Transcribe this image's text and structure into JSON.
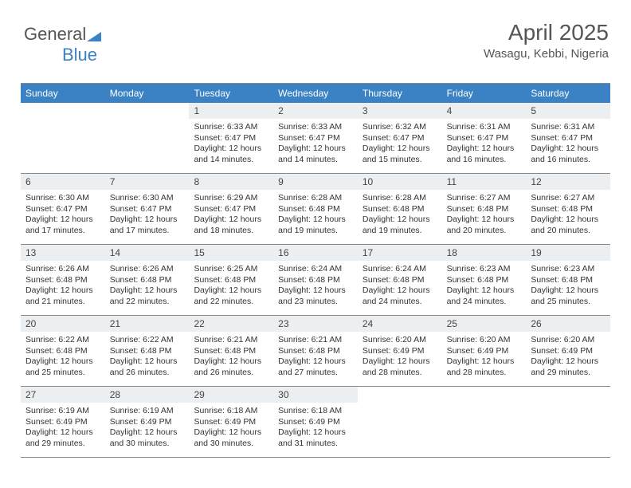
{
  "logo": {
    "text_gray": "General",
    "text_blue": "Blue"
  },
  "header": {
    "month": "April 2025",
    "location": "Wasagu, Kebbi, Nigeria"
  },
  "colors": {
    "header_bg": "#3b82c4",
    "daynum_bg": "#eceff1",
    "border": "#888888",
    "title_color": "#555555",
    "text_color": "#333333"
  },
  "day_names": [
    "Sunday",
    "Monday",
    "Tuesday",
    "Wednesday",
    "Thursday",
    "Friday",
    "Saturday"
  ],
  "weeks": [
    [
      {
        "n": "",
        "lines": []
      },
      {
        "n": "",
        "lines": []
      },
      {
        "n": "1",
        "lines": [
          "Sunrise: 6:33 AM",
          "Sunset: 6:47 PM",
          "Daylight: 12 hours",
          "and 14 minutes."
        ]
      },
      {
        "n": "2",
        "lines": [
          "Sunrise: 6:33 AM",
          "Sunset: 6:47 PM",
          "Daylight: 12 hours",
          "and 14 minutes."
        ]
      },
      {
        "n": "3",
        "lines": [
          "Sunrise: 6:32 AM",
          "Sunset: 6:47 PM",
          "Daylight: 12 hours",
          "and 15 minutes."
        ]
      },
      {
        "n": "4",
        "lines": [
          "Sunrise: 6:31 AM",
          "Sunset: 6:47 PM",
          "Daylight: 12 hours",
          "and 16 minutes."
        ]
      },
      {
        "n": "5",
        "lines": [
          "Sunrise: 6:31 AM",
          "Sunset: 6:47 PM",
          "Daylight: 12 hours",
          "and 16 minutes."
        ]
      }
    ],
    [
      {
        "n": "6",
        "lines": [
          "Sunrise: 6:30 AM",
          "Sunset: 6:47 PM",
          "Daylight: 12 hours",
          "and 17 minutes."
        ]
      },
      {
        "n": "7",
        "lines": [
          "Sunrise: 6:30 AM",
          "Sunset: 6:47 PM",
          "Daylight: 12 hours",
          "and 17 minutes."
        ]
      },
      {
        "n": "8",
        "lines": [
          "Sunrise: 6:29 AM",
          "Sunset: 6:47 PM",
          "Daylight: 12 hours",
          "and 18 minutes."
        ]
      },
      {
        "n": "9",
        "lines": [
          "Sunrise: 6:28 AM",
          "Sunset: 6:48 PM",
          "Daylight: 12 hours",
          "and 19 minutes."
        ]
      },
      {
        "n": "10",
        "lines": [
          "Sunrise: 6:28 AM",
          "Sunset: 6:48 PM",
          "Daylight: 12 hours",
          "and 19 minutes."
        ]
      },
      {
        "n": "11",
        "lines": [
          "Sunrise: 6:27 AM",
          "Sunset: 6:48 PM",
          "Daylight: 12 hours",
          "and 20 minutes."
        ]
      },
      {
        "n": "12",
        "lines": [
          "Sunrise: 6:27 AM",
          "Sunset: 6:48 PM",
          "Daylight: 12 hours",
          "and 20 minutes."
        ]
      }
    ],
    [
      {
        "n": "13",
        "lines": [
          "Sunrise: 6:26 AM",
          "Sunset: 6:48 PM",
          "Daylight: 12 hours",
          "and 21 minutes."
        ]
      },
      {
        "n": "14",
        "lines": [
          "Sunrise: 6:26 AM",
          "Sunset: 6:48 PM",
          "Daylight: 12 hours",
          "and 22 minutes."
        ]
      },
      {
        "n": "15",
        "lines": [
          "Sunrise: 6:25 AM",
          "Sunset: 6:48 PM",
          "Daylight: 12 hours",
          "and 22 minutes."
        ]
      },
      {
        "n": "16",
        "lines": [
          "Sunrise: 6:24 AM",
          "Sunset: 6:48 PM",
          "Daylight: 12 hours",
          "and 23 minutes."
        ]
      },
      {
        "n": "17",
        "lines": [
          "Sunrise: 6:24 AM",
          "Sunset: 6:48 PM",
          "Daylight: 12 hours",
          "and 24 minutes."
        ]
      },
      {
        "n": "18",
        "lines": [
          "Sunrise: 6:23 AM",
          "Sunset: 6:48 PM",
          "Daylight: 12 hours",
          "and 24 minutes."
        ]
      },
      {
        "n": "19",
        "lines": [
          "Sunrise: 6:23 AM",
          "Sunset: 6:48 PM",
          "Daylight: 12 hours",
          "and 25 minutes."
        ]
      }
    ],
    [
      {
        "n": "20",
        "lines": [
          "Sunrise: 6:22 AM",
          "Sunset: 6:48 PM",
          "Daylight: 12 hours",
          "and 25 minutes."
        ]
      },
      {
        "n": "21",
        "lines": [
          "Sunrise: 6:22 AM",
          "Sunset: 6:48 PM",
          "Daylight: 12 hours",
          "and 26 minutes."
        ]
      },
      {
        "n": "22",
        "lines": [
          "Sunrise: 6:21 AM",
          "Sunset: 6:48 PM",
          "Daylight: 12 hours",
          "and 26 minutes."
        ]
      },
      {
        "n": "23",
        "lines": [
          "Sunrise: 6:21 AM",
          "Sunset: 6:48 PM",
          "Daylight: 12 hours",
          "and 27 minutes."
        ]
      },
      {
        "n": "24",
        "lines": [
          "Sunrise: 6:20 AM",
          "Sunset: 6:49 PM",
          "Daylight: 12 hours",
          "and 28 minutes."
        ]
      },
      {
        "n": "25",
        "lines": [
          "Sunrise: 6:20 AM",
          "Sunset: 6:49 PM",
          "Daylight: 12 hours",
          "and 28 minutes."
        ]
      },
      {
        "n": "26",
        "lines": [
          "Sunrise: 6:20 AM",
          "Sunset: 6:49 PM",
          "Daylight: 12 hours",
          "and 29 minutes."
        ]
      }
    ],
    [
      {
        "n": "27",
        "lines": [
          "Sunrise: 6:19 AM",
          "Sunset: 6:49 PM",
          "Daylight: 12 hours",
          "and 29 minutes."
        ]
      },
      {
        "n": "28",
        "lines": [
          "Sunrise: 6:19 AM",
          "Sunset: 6:49 PM",
          "Daylight: 12 hours",
          "and 30 minutes."
        ]
      },
      {
        "n": "29",
        "lines": [
          "Sunrise: 6:18 AM",
          "Sunset: 6:49 PM",
          "Daylight: 12 hours",
          "and 30 minutes."
        ]
      },
      {
        "n": "30",
        "lines": [
          "Sunrise: 6:18 AM",
          "Sunset: 6:49 PM",
          "Daylight: 12 hours",
          "and 31 minutes."
        ]
      },
      {
        "n": "",
        "lines": []
      },
      {
        "n": "",
        "lines": []
      },
      {
        "n": "",
        "lines": []
      }
    ]
  ]
}
